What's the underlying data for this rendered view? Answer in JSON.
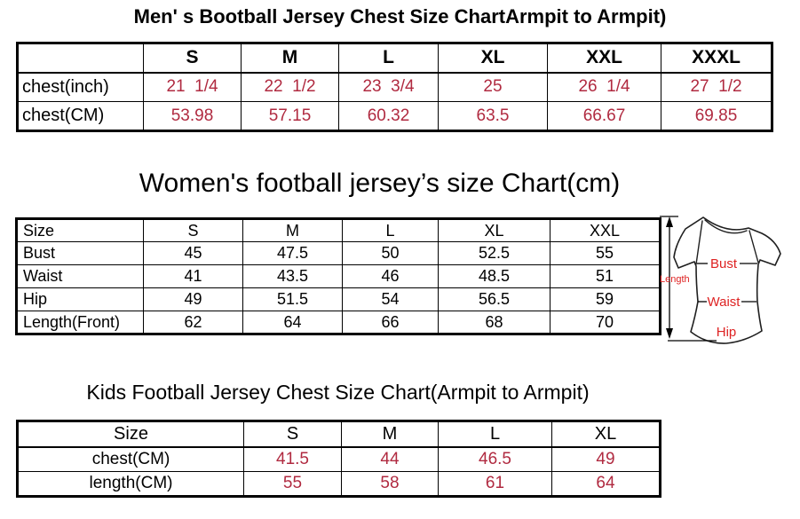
{
  "colors": {
    "table_value_red": "#B02A40",
    "diagram_label_red": "#DE2222",
    "border_black": "#000000",
    "background": "#ffffff"
  },
  "tables": {
    "men": {
      "title": "Men' s Bootball Jersey Chest Size ChartArmpit to Armpit)",
      "columns": [
        "",
        "S",
        "M",
        "L",
        "XL",
        "XXL",
        "XXXL"
      ],
      "rows": [
        {
          "label": "chest(inch)",
          "values": [
            "21  1/4",
            "22  1/2",
            "23  3/4",
            "25",
            "26  1/4",
            "27  1/2"
          ]
        },
        {
          "label": "chest(CM)",
          "values": [
            "53.98",
            "57.15",
            "60.32",
            "63.5",
            "66.67",
            "69.85"
          ]
        }
      ]
    },
    "women": {
      "title": "Women's football jersey’s size Chart(cm)",
      "columns": [
        "Size",
        "S",
        "M",
        "L",
        "XL",
        "XXL"
      ],
      "rows": [
        {
          "label": "Bust",
          "values": [
            "45",
            "47.5",
            "50",
            "52.5",
            "55"
          ]
        },
        {
          "label": "Waist",
          "values": [
            "41",
            "43.5",
            "46",
            "48.5",
            "51"
          ]
        },
        {
          "label": "Hip",
          "values": [
            "49",
            "51.5",
            "54",
            "56.5",
            "59"
          ]
        },
        {
          "label": "Length(Front)",
          "values": [
            "62",
            "64",
            "66",
            "68",
            "70"
          ]
        }
      ]
    },
    "kids": {
      "title": "Kids Football Jersey Chest Size Chart(Armpit to Armpit)",
      "columns": [
        "Size",
        "S",
        "M",
        "L",
        "XL"
      ],
      "rows": [
        {
          "label": "chest(CM)",
          "values": [
            "41.5",
            "44",
            "46.5",
            "49"
          ]
        },
        {
          "label": "length(CM)",
          "values": [
            "55",
            "58",
            "61",
            "64"
          ]
        }
      ]
    }
  },
  "diagram": {
    "length_label": "Length",
    "bust_label": "Bust",
    "waist_label": "Waist",
    "hip_label": "Hip"
  }
}
